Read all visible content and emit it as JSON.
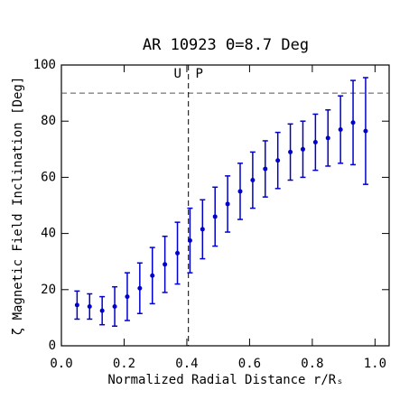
{
  "chart_data": {
    "type": "scatter",
    "title": "AR 10923 Θ=8.7 Deg",
    "x_label": "Normalized Radial Distance r/Rₛ",
    "y_label": "ζ Magnetic Field Inclination [Deg]",
    "x": [
      0.05,
      0.09,
      0.13,
      0.17,
      0.21,
      0.25,
      0.29,
      0.33,
      0.37,
      0.41,
      0.45,
      0.49,
      0.53,
      0.57,
      0.61,
      0.65,
      0.69,
      0.73,
      0.77,
      0.81,
      0.85,
      0.89,
      0.93,
      0.97
    ],
    "values": [
      14.5,
      14,
      12.5,
      14,
      17.5,
      20.5,
      25,
      29,
      33,
      37.5,
      41.5,
      46,
      50.5,
      55,
      59,
      63,
      66,
      69,
      70,
      72.5,
      74,
      77,
      79.5,
      76.5
    ],
    "errors": [
      5,
      4.5,
      5,
      7,
      8.5,
      9,
      10,
      10,
      11,
      11.5,
      10.5,
      10.5,
      10,
      10,
      10,
      10,
      10,
      10,
      10,
      10,
      10,
      12,
      15,
      19
    ],
    "color": "#0000cc",
    "xlim": [
      0,
      1.045
    ],
    "ylim": [
      0,
      100
    ],
    "xticks": [
      {
        "value": 0,
        "label": "0.0"
      },
      {
        "value": 0.2,
        "label": "0.2"
      },
      {
        "value": 0.4,
        "label": "0.4"
      },
      {
        "value": 0.6,
        "label": "0.6"
      },
      {
        "value": 0.8,
        "label": "0.8"
      },
      {
        "value": 1,
        "label": "1.0"
      }
    ],
    "yticks": [
      0,
      20,
      40,
      60,
      80,
      100
    ],
    "hlines": [
      90
    ],
    "vlines": [
      0.405
    ],
    "annotations": [
      "U",
      "P"
    ]
  }
}
